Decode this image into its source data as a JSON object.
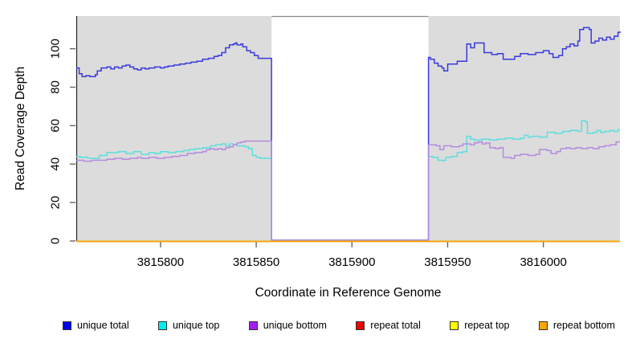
{
  "chart_data": {
    "type": "line",
    "subtype": "step-coverage",
    "title": "",
    "xlabel": "Coordinate in Reference Genome",
    "ylabel": "Read Coverage Depth",
    "xlim": [
      3815756,
      3816040
    ],
    "ylim": [
      0,
      117
    ],
    "xticks": [
      3815800,
      3815850,
      3815900,
      3815950,
      3816000
    ],
    "yticks": [
      0,
      20,
      40,
      60,
      80,
      100
    ],
    "grid": false,
    "legend_position": "bottom",
    "shade_color": "#dcdcdc",
    "shaded_regions": [
      [
        3815756,
        3815858
      ],
      [
        3815940,
        3816040
      ]
    ],
    "gap_region": [
      3815858,
      3815940
    ],
    "gap_top_border_color": "#8a8a8a",
    "axis_color": "#222222",
    "tick_color": "#666666",
    "series": [
      {
        "name": "unique total",
        "legend_color": "#0000EE",
        "line_color": "#3939DE",
        "group": "unique",
        "points": [
          [
            3815756,
            90
          ],
          [
            3815757.5,
            87
          ],
          [
            3815759,
            85.5
          ],
          [
            3815761,
            86
          ],
          [
            3815763,
            85.5
          ],
          [
            3815766,
            86.5
          ],
          [
            3815767,
            88.5
          ],
          [
            3815769,
            90
          ],
          [
            3815772,
            90.5
          ],
          [
            3815774,
            89.5
          ],
          [
            3815776,
            90.5
          ],
          [
            3815778,
            90
          ],
          [
            3815780,
            91
          ],
          [
            3815782,
            91.5
          ],
          [
            3815784,
            90.5
          ],
          [
            3815786,
            89.5
          ],
          [
            3815788,
            89
          ],
          [
            3815790,
            90
          ],
          [
            3815792,
            89.5
          ],
          [
            3815794,
            90
          ],
          [
            3815797,
            90.5
          ],
          [
            3815800,
            90
          ],
          [
            3815802,
            90.5
          ],
          [
            3815804,
            91
          ],
          [
            3815807,
            91.5
          ],
          [
            3815810,
            92
          ],
          [
            3815813,
            92.5
          ],
          [
            3815816,
            93
          ],
          [
            3815819,
            93.5
          ],
          [
            3815822,
            94.5
          ],
          [
            3815825,
            95
          ],
          [
            3815828,
            96
          ],
          [
            3815830,
            96.5
          ],
          [
            3815832,
            98
          ],
          [
            3815834,
            100.5
          ],
          [
            3815836,
            102
          ],
          [
            3815838,
            102.5
          ],
          [
            3815839,
            103
          ],
          [
            3815840,
            102
          ],
          [
            3815842,
            102.5
          ],
          [
            3815843,
            101
          ],
          [
            3815845,
            99
          ],
          [
            3815847,
            98
          ],
          [
            3815849,
            96.5
          ],
          [
            3815851,
            95
          ],
          [
            3815858,
            0
          ],
          [
            3815940,
            95.5
          ],
          [
            3815941,
            94.5
          ],
          [
            3815943,
            92.5
          ],
          [
            3815945,
            91
          ],
          [
            3815947,
            90
          ],
          [
            3815948,
            88.5
          ],
          [
            3815950,
            92
          ],
          [
            3815955,
            93.5
          ],
          [
            3815960,
            102.5
          ],
          [
            3815962,
            100.5
          ],
          [
            3815964,
            103
          ],
          [
            3815969,
            98
          ],
          [
            3815973,
            97
          ],
          [
            3815976,
            97.5
          ],
          [
            3815979,
            94.5
          ],
          [
            3815985,
            96
          ],
          [
            3815988,
            97.5
          ],
          [
            3815992,
            97
          ],
          [
            3815996,
            98
          ],
          [
            3816000,
            99
          ],
          [
            3816003,
            97.5
          ],
          [
            3816005,
            95.5
          ],
          [
            3816008,
            96.5
          ],
          [
            3816010,
            100
          ],
          [
            3816012,
            101
          ],
          [
            3816014,
            102.5
          ],
          [
            3816016,
            101.5
          ],
          [
            3816018,
            104
          ],
          [
            3816019,
            110
          ],
          [
            3816021,
            111
          ],
          [
            3816024,
            110
          ],
          [
            3816025,
            103
          ],
          [
            3816027,
            104
          ],
          [
            3816029,
            105.5
          ],
          [
            3816031,
            104.5
          ],
          [
            3816033,
            106
          ],
          [
            3816035,
            105
          ],
          [
            3816037,
            106.5
          ],
          [
            3816039,
            108.5
          ],
          [
            3816040,
            109
          ]
        ]
      },
      {
        "name": "unique top",
        "legend_color": "#00EEEE",
        "line_color": "#5CDEDE",
        "group": "unique",
        "points": [
          [
            3815756,
            44
          ],
          [
            3815758,
            43.5
          ],
          [
            3815762,
            43
          ],
          [
            3815768,
            44.5
          ],
          [
            3815772,
            46
          ],
          [
            3815778,
            46.5
          ],
          [
            3815782,
            45.5
          ],
          [
            3815786,
            46.5
          ],
          [
            3815790,
            45
          ],
          [
            3815794,
            46
          ],
          [
            3815797,
            45.5
          ],
          [
            3815800,
            46.5
          ],
          [
            3815804,
            46
          ],
          [
            3815808,
            46.5
          ],
          [
            3815812,
            47
          ],
          [
            3815815,
            47.5
          ],
          [
            3815818,
            48
          ],
          [
            3815822,
            48.5
          ],
          [
            3815826,
            49.5
          ],
          [
            3815829,
            50
          ],
          [
            3815832,
            50.5
          ],
          [
            3815834,
            49.5
          ],
          [
            3815836,
            50.5
          ],
          [
            3815838,
            50
          ],
          [
            3815840,
            49.5
          ],
          [
            3815844,
            49
          ],
          [
            3815846,
            48
          ],
          [
            3815848,
            44.5
          ],
          [
            3815850,
            43.5
          ],
          [
            3815852,
            43
          ],
          [
            3815858,
            0
          ],
          [
            3815940,
            44
          ],
          [
            3815942,
            43.5
          ],
          [
            3815945,
            42
          ],
          [
            3815947,
            41.8
          ],
          [
            3815949,
            43.5
          ],
          [
            3815952,
            44
          ],
          [
            3815955,
            46
          ],
          [
            3815958,
            46.5
          ],
          [
            3815960,
            54.5
          ],
          [
            3815962,
            53
          ],
          [
            3815964,
            52.5
          ],
          [
            3815968,
            53
          ],
          [
            3815972,
            52.5
          ],
          [
            3815976,
            53
          ],
          [
            3815980,
            53.5
          ],
          [
            3815984,
            53
          ],
          [
            3815988,
            53.5
          ],
          [
            3815990,
            55
          ],
          [
            3815992,
            54
          ],
          [
            3815994,
            54.5
          ],
          [
            3815998,
            54
          ],
          [
            3816002,
            56.5
          ],
          [
            3816006,
            56
          ],
          [
            3816010,
            57
          ],
          [
            3816014,
            57.5
          ],
          [
            3816018,
            57
          ],
          [
            3816020,
            62.5
          ],
          [
            3816022,
            62
          ],
          [
            3816023,
            56
          ],
          [
            3816026,
            56.5
          ],
          [
            3816028,
            57.5
          ],
          [
            3816030,
            56.5
          ],
          [
            3816032,
            57
          ],
          [
            3816035,
            57.5
          ],
          [
            3816037,
            57
          ],
          [
            3816039,
            58
          ],
          [
            3816040,
            58
          ]
        ]
      },
      {
        "name": "unique bottom",
        "legend_color": "#A020F0",
        "line_color": "#B48BE0",
        "group": "unique",
        "points": [
          [
            3815756,
            42
          ],
          [
            3815760,
            41.5
          ],
          [
            3815764,
            42
          ],
          [
            3815772,
            42.5
          ],
          [
            3815776,
            43
          ],
          [
            3815780,
            42.5
          ],
          [
            3815784,
            43
          ],
          [
            3815788,
            43.5
          ],
          [
            3815790,
            43
          ],
          [
            3815794,
            43.5
          ],
          [
            3815798,
            43
          ],
          [
            3815802,
            43.5
          ],
          [
            3815806,
            44
          ],
          [
            3815810,
            44.5
          ],
          [
            3815814,
            45.5
          ],
          [
            3815818,
            46
          ],
          [
            3815822,
            46.5
          ],
          [
            3815824,
            47.5
          ],
          [
            3815826,
            48
          ],
          [
            3815828,
            47.5
          ],
          [
            3815830,
            48
          ],
          [
            3815832,
            47.5
          ],
          [
            3815834,
            48.5
          ],
          [
            3815836,
            49
          ],
          [
            3815838,
            50
          ],
          [
            3815840,
            51
          ],
          [
            3815842,
            51.5
          ],
          [
            3815844,
            52
          ],
          [
            3815858,
            0
          ],
          [
            3815940,
            50
          ],
          [
            3815944,
            49.5
          ],
          [
            3815946,
            47.5
          ],
          [
            3815948,
            49.5
          ],
          [
            3815952,
            49
          ],
          [
            3815956,
            49.5
          ],
          [
            3815958,
            50.5
          ],
          [
            3815962,
            50
          ],
          [
            3815964,
            51
          ],
          [
            3815966,
            51.5
          ],
          [
            3815968,
            50.5
          ],
          [
            3815970,
            51
          ],
          [
            3815972,
            48.5
          ],
          [
            3815975,
            48
          ],
          [
            3815977,
            48.5
          ],
          [
            3815979,
            43.5
          ],
          [
            3815983,
            43
          ],
          [
            3815985,
            44.5
          ],
          [
            3815988,
            45
          ],
          [
            3815992,
            44.5
          ],
          [
            3815996,
            45
          ],
          [
            3815998,
            47.5
          ],
          [
            3816002,
            47
          ],
          [
            3816004,
            45.5
          ],
          [
            3816007,
            46.5
          ],
          [
            3816009,
            48
          ],
          [
            3816012,
            48.5
          ],
          [
            3816014,
            48
          ],
          [
            3816017,
            48.5
          ],
          [
            3816020,
            48
          ],
          [
            3816023,
            48.5
          ],
          [
            3816026,
            48
          ],
          [
            3816029,
            49
          ],
          [
            3816032,
            49.5
          ],
          [
            3816035,
            50
          ],
          [
            3816038,
            51.5
          ],
          [
            3816040,
            51.5
          ]
        ]
      },
      {
        "name": "repeat total",
        "legend_color": "#EE0000",
        "line_color": "#DD0000",
        "group": "repeat",
        "points": [
          [
            3815756,
            0
          ],
          [
            3816040,
            0
          ]
        ]
      },
      {
        "name": "repeat top",
        "legend_color": "#FFFF00",
        "line_color": "#FFFF00",
        "group": "repeat",
        "points": [
          [
            3815756,
            0
          ],
          [
            3816040,
            0
          ]
        ]
      },
      {
        "name": "repeat bottom",
        "legend_color": "#FFA500",
        "line_color": "#FFA500",
        "group": "repeat",
        "points": [
          [
            3815756,
            0
          ],
          [
            3816040,
            0
          ]
        ]
      }
    ]
  }
}
